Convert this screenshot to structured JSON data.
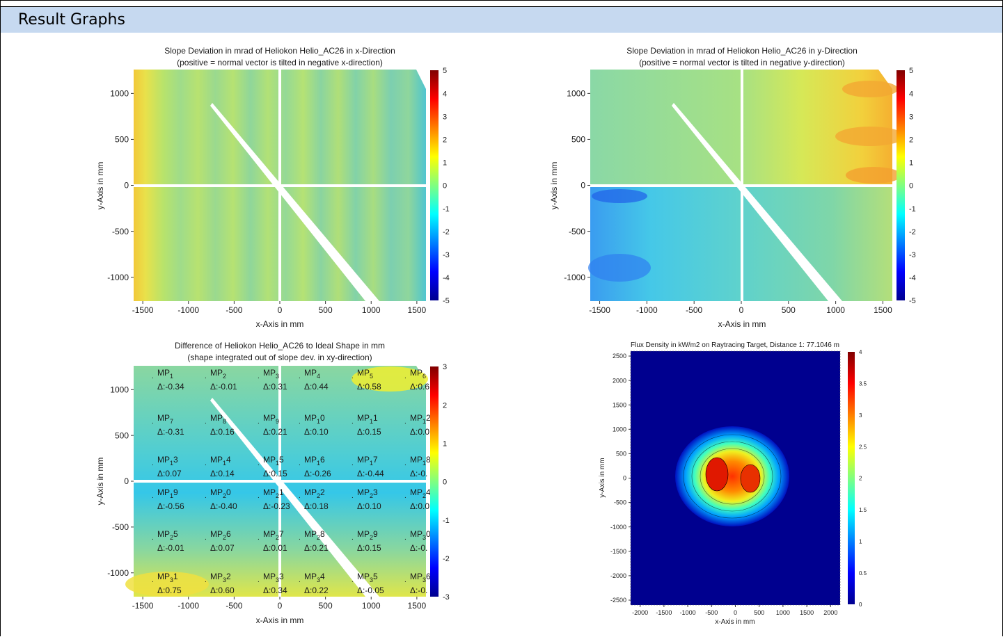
{
  "header": {
    "title": "Result Graphs"
  },
  "chart_data": [
    {
      "type": "heatmap",
      "title_line1": "Slope Deviation in mrad of Heliokon Helio_AC26 in x-Direction",
      "title_line2": "(positive = normal vector is tilted in negative x-direction)",
      "xlabel": "x-Axis in mm",
      "ylabel": "y-Axis in mm",
      "xlim": [
        -1600,
        1600
      ],
      "ylim": [
        -1260,
        1260
      ],
      "xticks": [
        -1500,
        -1000,
        -500,
        0,
        500,
        1000,
        1500
      ],
      "yticks": [
        1000,
        500,
        0,
        -500,
        -1000
      ],
      "colorbar": {
        "min": -5,
        "max": 5,
        "ticks": [
          5,
          4,
          3,
          2,
          1,
          0,
          -1,
          -2,
          -3,
          -4,
          -5
        ],
        "colormap": "jet"
      }
    },
    {
      "type": "heatmap",
      "title_line1": "Slope Deviation in mrad of Heliokon Helio_AC26 in y-Direction",
      "title_line2": "(positive = normal vector is tilted in negative y-direction)",
      "xlabel": "x-Axis in mm",
      "ylabel": "y-Axis in mm",
      "xlim": [
        -1600,
        1600
      ],
      "ylim": [
        -1260,
        1260
      ],
      "xticks": [
        -1500,
        -1000,
        -500,
        0,
        500,
        1000,
        1500
      ],
      "yticks": [
        1000,
        500,
        0,
        -500,
        -1000
      ],
      "colorbar": {
        "min": -5,
        "max": 5,
        "ticks": [
          5,
          4,
          3,
          2,
          1,
          0,
          -1,
          -2,
          -3,
          -4,
          -5
        ],
        "colormap": "jet"
      }
    },
    {
      "type": "heatmap",
      "title_line1": "Difference of Heliokon Helio_AC26 to Ideal Shape in mm",
      "title_line2": "(shape integrated out of slope dev. in xy-direction)",
      "xlabel": "x-Axis in mm",
      "ylabel": "y-Axis in mm",
      "xlim": [
        -1600,
        1600
      ],
      "ylim": [
        -1260,
        1260
      ],
      "xticks": [
        -1500,
        -1000,
        -500,
        0,
        500,
        1000,
        1500
      ],
      "yticks": [
        1000,
        500,
        0,
        -500,
        -1000
      ],
      "colorbar": {
        "min": -3,
        "max": 3,
        "ticks": [
          3,
          2,
          1,
          0,
          -1,
          -2,
          -3
        ],
        "colormap": "jet"
      },
      "measure_points": [
        {
          "name": "MP1",
          "num": "1",
          "delta": "Δ:-0.34"
        },
        {
          "name": "MP2",
          "num": "2",
          "delta": "Δ:-0.01"
        },
        {
          "name": "MP3",
          "num": "3",
          "delta": "Δ:0.31"
        },
        {
          "name": "MP4",
          "num": "4",
          "delta": "Δ:0.44"
        },
        {
          "name": "MP5",
          "num": "5",
          "delta": "Δ:0.58"
        },
        {
          "name": "MP6",
          "num": "6",
          "delta": "Δ:0.6"
        },
        {
          "name": "MP7",
          "num": "7",
          "delta": "Δ:-0.31"
        },
        {
          "name": "MP8",
          "num": "8",
          "delta": "Δ:0.16"
        },
        {
          "name": "MP9",
          "num": "9",
          "delta": "Δ:0.21"
        },
        {
          "name": "MP10",
          "num": "10",
          "delta": "Δ:0.10"
        },
        {
          "name": "MP11",
          "num": "11",
          "delta": "Δ:0.15"
        },
        {
          "name": "MP12",
          "num": "12",
          "delta": "Δ:0.0"
        },
        {
          "name": "MP13",
          "num": "13",
          "delta": "Δ:0.07"
        },
        {
          "name": "MP14",
          "num": "14",
          "delta": "Δ:0.14"
        },
        {
          "name": "MP15",
          "num": "15",
          "delta": "Δ:0.15"
        },
        {
          "name": "MP16",
          "num": "16",
          "delta": "Δ:-0.26"
        },
        {
          "name": "MP17",
          "num": "17",
          "delta": "Δ:-0.44"
        },
        {
          "name": "MP18",
          "num": "18",
          "delta": "Δ:-0."
        },
        {
          "name": "MP19",
          "num": "19",
          "delta": "Δ:-0.56"
        },
        {
          "name": "MP20",
          "num": "20",
          "delta": "Δ:-0.40"
        },
        {
          "name": "MP21",
          "num": "21",
          "delta": "Δ:-0.23"
        },
        {
          "name": "MP22",
          "num": "22",
          "delta": "Δ:0.18"
        },
        {
          "name": "MP23",
          "num": "23",
          "delta": "Δ:0.10"
        },
        {
          "name": "MP24",
          "num": "24",
          "delta": "Δ:0.0"
        },
        {
          "name": "MP25",
          "num": "25",
          "delta": "Δ:-0.01"
        },
        {
          "name": "MP26",
          "num": "26",
          "delta": "Δ:0.07"
        },
        {
          "name": "MP27",
          "num": "27",
          "delta": "Δ:0.01"
        },
        {
          "name": "MP28",
          "num": "28",
          "delta": "Δ:0.21"
        },
        {
          "name": "MP29",
          "num": "29",
          "delta": "Δ:0.15"
        },
        {
          "name": "MP30",
          "num": "30",
          "delta": "Δ:-0."
        },
        {
          "name": "MP31",
          "num": "31",
          "delta": "Δ:0.75"
        },
        {
          "name": "MP32",
          "num": "32",
          "delta": "Δ:0.60"
        },
        {
          "name": "MP33",
          "num": "33",
          "delta": "Δ:0.34"
        },
        {
          "name": "MP34",
          "num": "34",
          "delta": "Δ:0.22"
        },
        {
          "name": "MP35",
          "num": "35",
          "delta": "Δ:-0.05"
        },
        {
          "name": "MP36",
          "num": "36",
          "delta": "Δ:-0."
        }
      ]
    },
    {
      "type": "heatmap",
      "title_line1": "Flux Density in kW/m2 on Raytracing Target, Distance 1: 77.1046 m",
      "xlabel": "x-Axis in mm",
      "ylabel": "y-Axis in mm",
      "xlim": [
        -2200,
        2200
      ],
      "ylim": [
        -2600,
        2600
      ],
      "xticks": [
        -2000,
        -1500,
        -1000,
        -500,
        0,
        500,
        1000,
        1500,
        2000
      ],
      "yticks": [
        2500,
        2000,
        1500,
        1000,
        500,
        0,
        -500,
        -1000,
        -1500,
        -2000,
        -2500
      ],
      "colorbar": {
        "min": 0,
        "max": 4,
        "ticks": [
          4,
          3.5,
          3,
          2.5,
          2,
          1.5,
          1,
          0.5,
          0
        ],
        "colormap": "jet"
      }
    }
  ]
}
